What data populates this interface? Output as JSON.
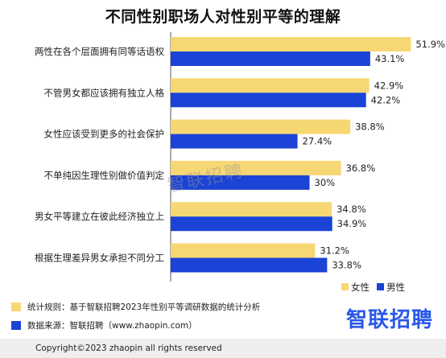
{
  "chart_data": {
    "type": "bar",
    "orientation": "horizontal",
    "title": "不同性别职场人对性别平等的理解",
    "categories": [
      "两性在各个层面拥有同等话语权",
      "不管男女都应该拥有独立人格",
      "女性应该受到更多的社会保护",
      "不单纯因生理性别做价值判定",
      "男女平等建立在彼此经济独立上",
      "根据生理差异男女承担不同分工"
    ],
    "series": [
      {
        "name": "女性",
        "color": "#f7d774",
        "values": [
          51.9,
          42.9,
          38.8,
          36.8,
          34.8,
          31.2
        ],
        "labels": [
          "51.9%",
          "42.9%",
          "38.8%",
          "36.8%",
          "34.8%",
          "31.2%"
        ]
      },
      {
        "name": "男性",
        "color": "#1b43d6",
        "values": [
          43.1,
          42.2,
          27.4,
          30,
          34.9,
          33.8
        ],
        "labels": [
          "43.1%",
          "42.2%",
          "27.4%",
          "30%",
          "34.9%",
          "33.8%"
        ]
      }
    ],
    "legend_position": "bottom-right",
    "grid": false
  },
  "watermark": "智联招聘",
  "notes": {
    "rule": "统计规则：基于智联招聘2023年性别平等调研数据的统计分析",
    "source": "数据来源：智联招聘（www.zhaopin.com）",
    "rule_color": "#f7d774",
    "source_color": "#1b43d6"
  },
  "logo": "智联招聘",
  "footer": "Copyright©2023 zhaopin all rights reserved"
}
